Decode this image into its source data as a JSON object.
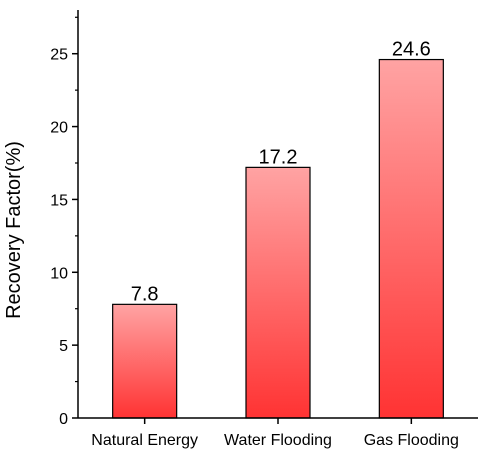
{
  "chart_data": {
    "type": "bar",
    "title": "",
    "xlabel": "",
    "ylabel": "Recovery Factor(%)",
    "categories": [
      "Natural Energy",
      "Water Flooding",
      "Gas Flooding"
    ],
    "values": [
      7.8,
      17.2,
      24.6
    ],
    "data_labels": [
      "7.8",
      "17.2",
      "24.6"
    ],
    "ylim": [
      0,
      28
    ],
    "yticks": [
      0,
      5,
      10,
      15,
      20,
      25
    ],
    "ytick_labels": [
      "0",
      "5",
      "10",
      "15",
      "20",
      "25"
    ],
    "grid": false,
    "legend": "none",
    "bar_color_top": "#ffa3a3",
    "bar_color_bottom": "#ff3333",
    "bar_edge_color": "#000000"
  }
}
